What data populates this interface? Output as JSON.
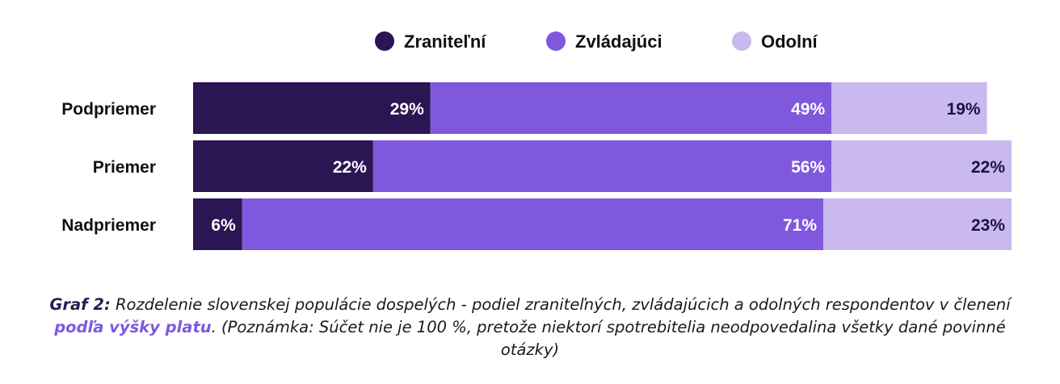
{
  "chart_data": {
    "type": "bar",
    "orientation": "horizontal",
    "stacked": true,
    "categories": [
      "Podpriemer",
      "Priemer",
      "Nadpriemer"
    ],
    "series": [
      {
        "name": "Zraniteľní",
        "values": [
          29,
          22,
          6
        ],
        "color": "#2b1553"
      },
      {
        "name": "Zvládajúci",
        "values": [
          49,
          56,
          71
        ],
        "color": "#7f58de"
      },
      {
        "name": "Odolní",
        "values": [
          19,
          22,
          23
        ],
        "color": "#c9b9ee"
      }
    ],
    "value_suffix": "%",
    "xlim": [
      0,
      100
    ],
    "grid": false,
    "legend_position": "top-center"
  },
  "caption": {
    "lead": "Graf 2:",
    "text_before": " Rozdelenie slovenskej populácie dospelých - podiel zraniteľných, zvládajúcich a odolných respondentov v členení ",
    "highlight": "podľa výšky platu",
    "text_after": ". (Poznámka: Súčet nie je 100 %, pretože niektorí spotrebitelia neodpovedalina všetky dané povinné otázky)"
  }
}
